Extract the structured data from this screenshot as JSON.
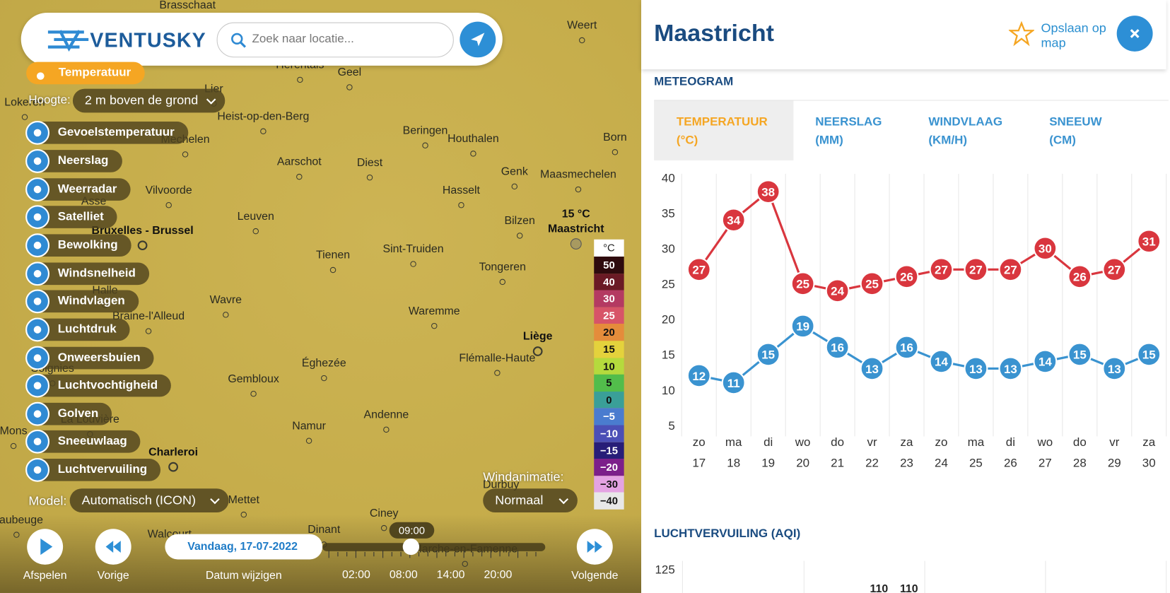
{
  "header": {
    "logo": "VENTUSKY",
    "search_placeholder": "Zoek naar locatie..."
  },
  "layers": {
    "active": "Temperatuur",
    "height_label": "Hoogte:",
    "height_value": "2 m boven de grond",
    "items": [
      "Gevoelstemperatuur",
      "Neerslag",
      "Weerradar",
      "Satelliet",
      "Bewolking",
      "Windsnelheid",
      "Windvlagen",
      "Luchtdruk",
      "Onweersbuien",
      "Luchtvochtigheid",
      "Golven",
      "Sneeuwlaag",
      "Luchtvervuiling"
    ]
  },
  "model": {
    "label": "Model:",
    "value": "Automatisch (ICON)"
  },
  "wind_animation": {
    "label": "Windanimatie:",
    "value": "Normaal"
  },
  "map": {
    "places": [
      "Brasschaat",
      "Weert",
      "Herentals",
      "Geel",
      "Lier",
      "Lokeren",
      "Heist-op-den-Berg",
      "Mechelen",
      "Beringen",
      "Houthalen",
      "Born",
      "Aarschot",
      "Diest",
      "Genk",
      "Maasmechelen",
      "Vilvoorde",
      "Hasselt",
      "Asse",
      "Leuven",
      "Bilzen",
      "Bruxelles - Brussel",
      "Sint-Truiden",
      "Tienen",
      "Tongeren",
      "Halle",
      "Wavre",
      "Waremme",
      "Braine-l'Alleud",
      "Liège",
      "Flémalle-Haute",
      "Éghezée",
      "Soignies",
      "Gembloux",
      "Andenne",
      "La Louvière",
      "Namur",
      "Mons",
      "Charleroi",
      "Durbuy",
      "Mettet",
      "Ciney",
      "Maubeuge",
      "Dinant",
      "Walcourt",
      "Marche-en-Famenne"
    ],
    "marker": {
      "temperature": "15 °C",
      "name": "Maastricht"
    }
  },
  "legend": {
    "unit": "°C",
    "labels": [
      "50",
      "40",
      "30",
      "25",
      "20",
      "15",
      "10",
      "5",
      "0",
      "−5",
      "−10",
      "−15",
      "−20",
      "−30",
      "−40"
    ],
    "colors": [
      "#2e0b0e",
      "#6a1a25",
      "#b43a62",
      "#d75468",
      "#e58c3b",
      "#e4d23c",
      "#b5da3d",
      "#52bd4b",
      "#3a9f98",
      "#4a7ccf",
      "#4b4fb6",
      "#271d78",
      "#7c1f8a",
      "#e4a3e3",
      "#e8e8e8"
    ]
  },
  "timeline": {
    "play": "Afspelen",
    "previous": "Vorige",
    "change_date": "Datum wijzigen",
    "next": "Volgende",
    "date": "Vandaag, 17-07-2022",
    "time": "09:00",
    "hours": [
      "02:00",
      "08:00",
      "14:00",
      "20:00"
    ]
  },
  "panel": {
    "title": "Maastricht",
    "save": "Opslaan op map",
    "section": "METEOGRAM",
    "tabs": [
      [
        "TEMPERATUUR",
        "(°C)"
      ],
      [
        "NEERSLAG",
        "(MM)"
      ],
      [
        "WINDVLAAG",
        "(KM/H)"
      ],
      [
        "SNEEUW",
        "(CM)"
      ]
    ],
    "aqi_title": "LUCHTVERVUILING (AQI)",
    "aqi_tick": "125",
    "aqi_labels": [
      "110",
      "110"
    ]
  },
  "meteogram": {
    "days": [
      "zo",
      "ma",
      "di",
      "wo",
      "do",
      "vr",
      "za",
      "zo",
      "ma",
      "di",
      "wo",
      "do",
      "vr",
      "za"
    ],
    "dates": [
      "17",
      "18",
      "19",
      "20",
      "21",
      "22",
      "23",
      "24",
      "25",
      "26",
      "27",
      "28",
      "29",
      "30"
    ],
    "ylim": [
      5,
      40
    ],
    "yticks": [
      5,
      10,
      15,
      20,
      25,
      30,
      35,
      40
    ],
    "series": [
      {
        "color": "#d9363e",
        "values": [
          27,
          34,
          38,
          25,
          24,
          25,
          26,
          27,
          27,
          27,
          30,
          26,
          27,
          31
        ]
      },
      {
        "color": "#3a93d0",
        "values": [
          12,
          11,
          15,
          19,
          16,
          13,
          16,
          14,
          13,
          13,
          14,
          15,
          13,
          15
        ]
      }
    ]
  }
}
